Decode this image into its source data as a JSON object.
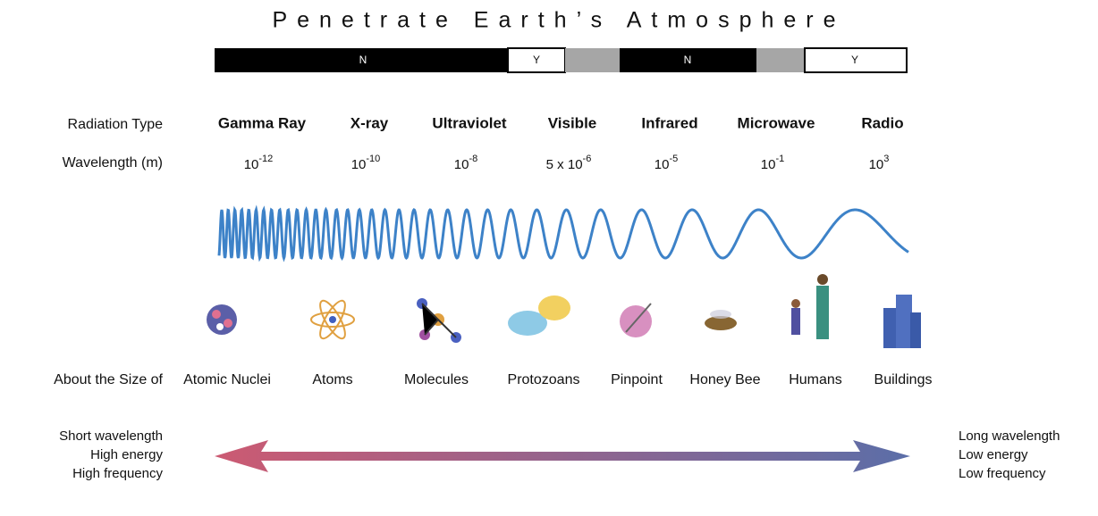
{
  "title": "Penetrate Earth’s Atmosphere",
  "atmosphere": {
    "segments": [
      "N",
      "Y",
      "N",
      "Y"
    ]
  },
  "radiation": {
    "label": "Radiation Type",
    "types": [
      "Gamma Ray",
      "X-ray",
      "Ultraviolet",
      "Visible",
      "Infrared",
      "Microwave",
      "Radio"
    ]
  },
  "wavelength": {
    "label": "Wavelength (m)",
    "values": [
      {
        "base": "10",
        "exp": "-12"
      },
      {
        "base": "10",
        "exp": "-10"
      },
      {
        "base": "10",
        "exp": "-8"
      },
      {
        "base": "5 x 10",
        "exp": "-6"
      },
      {
        "base": "10",
        "exp": "-5"
      },
      {
        "base": "10",
        "exp": "-1"
      },
      {
        "base": "10",
        "exp": "3"
      }
    ]
  },
  "size": {
    "label": "About the Size of",
    "items": [
      "Atomic Nuclei",
      "Atoms",
      "Molecules",
      "Protozoans",
      "Pinpoint",
      "Honey Bee",
      "Humans",
      "Buildings"
    ]
  },
  "left": [
    "Short wavelength",
    "High energy",
    "High frequency"
  ],
  "right": [
    "Long wavelength",
    "Low energy",
    "Low frequency"
  ]
}
